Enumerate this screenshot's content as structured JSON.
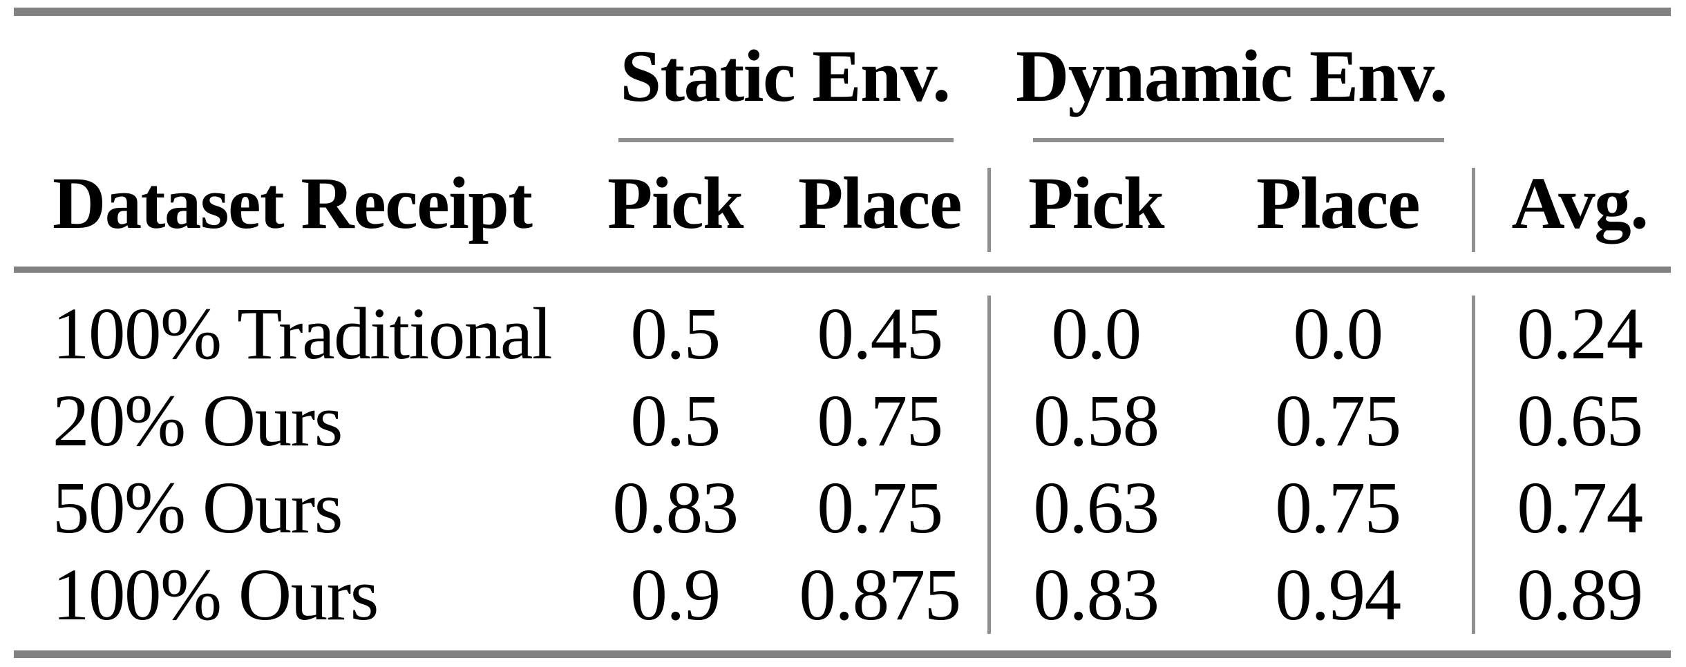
{
  "table": {
    "row_header_label": "Dataset Receipt",
    "groups": [
      {
        "label": "Static Env."
      },
      {
        "label": "Dynamic Env."
      }
    ],
    "sub_columns": {
      "static_pick": "Pick",
      "static_place": "Place",
      "dynamic_pick": "Pick",
      "dynamic_place": "Place"
    },
    "avg_label": "Avg.",
    "rows": [
      {
        "label": "100% Traditional",
        "values": [
          "0.5",
          "0.45",
          "0.0",
          "0.0",
          "0.24"
        ]
      },
      {
        "label": "20% Ours",
        "values": [
          "0.5",
          "0.75",
          "0.58",
          "0.75",
          "0.65"
        ]
      },
      {
        "label": "50% Ours",
        "values": [
          "0.83",
          "0.75",
          "0.63",
          "0.75",
          "0.74"
        ]
      },
      {
        "label": "100% Ours",
        "values": [
          "0.9",
          "0.875",
          "0.83",
          "0.94",
          "0.89"
        ]
      }
    ],
    "colors": {
      "thick_rule": "#818181",
      "thin_rule": "#8f8f8f",
      "text": "#000000",
      "background": "#ffffff"
    }
  }
}
